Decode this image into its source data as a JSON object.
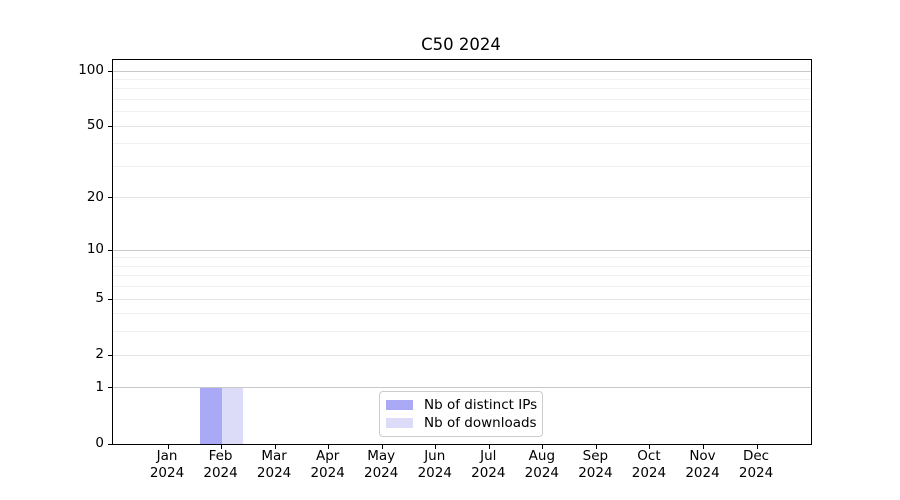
{
  "chart_data": {
    "type": "bar",
    "title": "C50 2024",
    "x_year": "2024",
    "categories": [
      "Jan",
      "Feb",
      "Mar",
      "Apr",
      "May",
      "Jun",
      "Jul",
      "Aug",
      "Sep",
      "Oct",
      "Nov",
      "Dec"
    ],
    "series": [
      {
        "name": "Nb of distinct IPs",
        "color": "#a9a9f5",
        "values": [
          0,
          1,
          0,
          0,
          0,
          0,
          0,
          0,
          0,
          0,
          0,
          0
        ]
      },
      {
        "name": "Nb of downloads",
        "color": "#dcdcf8",
        "values": [
          0,
          1,
          0,
          0,
          0,
          0,
          0,
          0,
          0,
          0,
          0,
          0
        ]
      }
    ],
    "y_ticks": [
      0,
      1,
      2,
      5,
      10,
      20,
      50,
      100
    ],
    "y_minor_ticks": [
      3,
      4,
      6,
      7,
      8,
      9,
      30,
      40,
      60,
      70,
      80,
      90
    ],
    "y_decade_ticks": [
      1,
      10,
      100
    ],
    "ylim": [
      0,
      100
    ],
    "yscale": "log1p",
    "grid": true,
    "legend_position": "lower center",
    "axis_color": "#000000",
    "grid_major_color": "#c9c9c9",
    "grid_minor_color": "#f1f1f1"
  }
}
